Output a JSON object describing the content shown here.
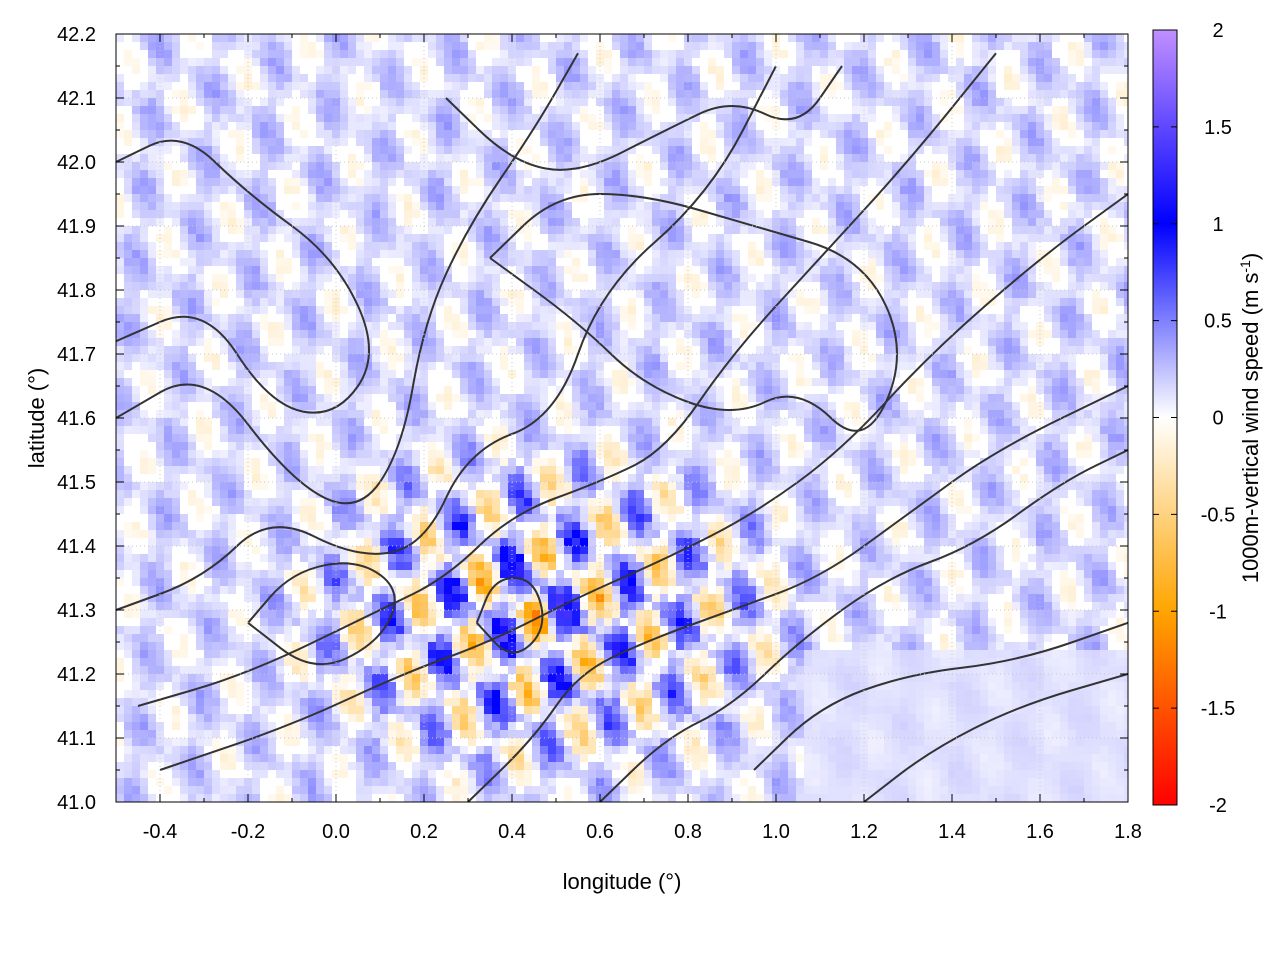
{
  "chart_data": {
    "type": "heatmap",
    "xlabel": "longitude (°)",
    "ylabel": "latitude (°)",
    "colorbar_label": "1000m-vertical wind speed (m s",
    "colorbar_label_sup": "-1",
    "colorbar_label_end": ")",
    "xlim": [
      -0.5,
      1.8
    ],
    "ylim": [
      41.0,
      42.2
    ],
    "clim": [
      -2,
      2
    ],
    "x_ticks": [
      "-0.4",
      "-0.2",
      "0.0",
      "0.2",
      "0.4",
      "0.6",
      "0.8",
      "1.0",
      "1.2",
      "1.4",
      "1.6",
      "1.8"
    ],
    "x_tick_values": [
      -0.4,
      -0.2,
      0.0,
      0.2,
      0.4,
      0.6,
      0.8,
      1.0,
      1.2,
      1.4,
      1.6,
      1.8
    ],
    "y_ticks": [
      "41.0",
      "41.1",
      "41.2",
      "41.3",
      "41.4",
      "41.5",
      "41.6",
      "41.7",
      "41.8",
      "41.9",
      "42.0",
      "42.1",
      "42.2"
    ],
    "y_tick_values": [
      41.0,
      41.1,
      41.2,
      41.3,
      41.4,
      41.5,
      41.6,
      41.7,
      41.8,
      41.9,
      42.0,
      42.1,
      42.2
    ],
    "c_ticks": [
      "-2",
      "-1.5",
      "-1",
      "-0.5",
      "0",
      "0.5",
      "1",
      "1.5",
      "2"
    ],
    "c_tick_values": [
      -2,
      -1.5,
      -1,
      -0.5,
      0,
      0.5,
      1,
      1.5,
      2
    ],
    "colormap": [
      {
        "v": -2,
        "color": "#ff0000"
      },
      {
        "v": -1,
        "color": "#ffa500"
      },
      {
        "v": 0,
        "color": "#ffffff"
      },
      {
        "v": 1,
        "color": "#0000ff"
      },
      {
        "v": 2,
        "color": "#c090ff"
      }
    ],
    "grid": true,
    "contours": "terrain elevation (dark lines, unlabeled)",
    "legend": "colorbar-right"
  }
}
